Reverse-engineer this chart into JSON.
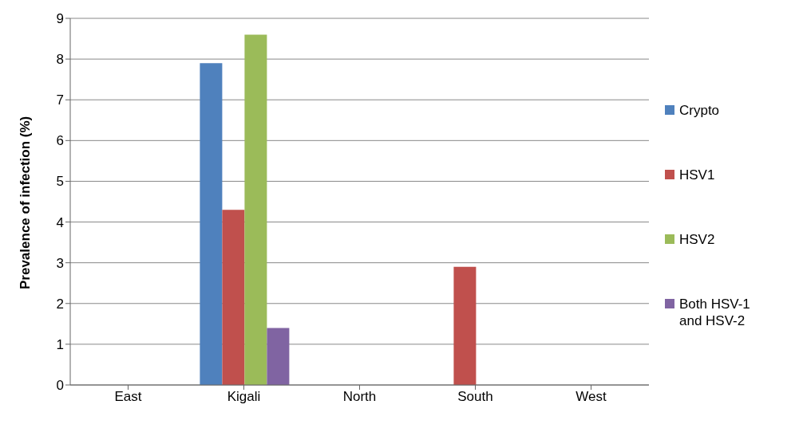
{
  "chart_data": {
    "type": "bar",
    "ylabel": "Prevalence of infection (%)",
    "categories": [
      "East",
      "Kigali",
      "North",
      "South",
      "West"
    ],
    "series": [
      {
        "name": "Crypto",
        "color": "#4f81bd",
        "values": [
          0,
          7.9,
          0,
          0,
          0
        ]
      },
      {
        "name": "HSV1",
        "color": "#c0504d",
        "values": [
          0,
          4.3,
          0,
          2.9,
          0
        ]
      },
      {
        "name": "HSV2",
        "color": "#9bbb59",
        "values": [
          0,
          8.6,
          0,
          0,
          0
        ]
      },
      {
        "name": "Both HSV-1 and HSV-2",
        "color": "#8064a2",
        "values": [
          0,
          1.4,
          0,
          0,
          0
        ]
      }
    ],
    "ylim": [
      0,
      9
    ],
    "yticks": [
      0,
      1,
      2,
      3,
      4,
      5,
      6,
      7,
      8,
      9
    ],
    "grid": "y",
    "legend": "right"
  }
}
